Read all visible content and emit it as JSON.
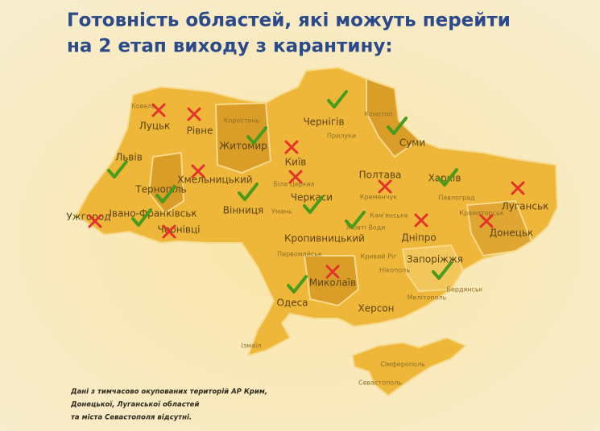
{
  "header": {
    "title": [
      "Готовність областей, які можуть перейти",
      "на 2 етап виходу з карантину:"
    ]
  },
  "regions": [
    {
      "label": "Луцьк",
      "ready": false
    },
    {
      "label": "Рівне",
      "ready": false
    },
    {
      "label": "Житомир",
      "ready": true
    },
    {
      "label": "Чернігів",
      "ready": true
    },
    {
      "label": "Суми",
      "ready": true
    },
    {
      "label": "Київ",
      "ready": false
    },
    {
      "label": null,
      "ready": false
    },
    {
      "label": "Львів",
      "ready": true
    },
    {
      "label": "Тернопіль",
      "ready": true
    },
    {
      "label": "Хмельницький",
      "ready": false
    },
    {
      "label": "Вінниця",
      "ready": true
    },
    {
      "label": "Полтава",
      "ready": false
    },
    {
      "label": "Харків",
      "ready": true
    },
    {
      "label": "Луганськ",
      "ready": false
    },
    {
      "label": "Ужгород",
      "ready": false
    },
    {
      "label": "Івано-Франківськ",
      "ready": true
    },
    {
      "label": "Чернівці",
      "ready": false
    },
    {
      "label": "Черкаси",
      "ready": true
    },
    {
      "label": "Кропивницький",
      "ready": true
    },
    {
      "label": "Дніпро",
      "ready": false
    },
    {
      "label": "Донецьк",
      "ready": false
    },
    {
      "label": "Запоріжжя",
      "ready": true
    },
    {
      "label": "Миколаїв",
      "ready": false
    },
    {
      "label": "Одеса",
      "ready": true
    },
    {
      "label": "Херсон",
      "ready": null
    }
  ],
  "cities": [
    "Ковель",
    "Коростень",
    "Прилуки",
    "Конотоп",
    "Біла Церква",
    "Умань",
    "Кременчук",
    "Павлоград",
    "Краматорськ",
    "Кам'янське",
    "Жовті Води",
    "Кривий Ріг",
    "Первомайськ",
    "Нікополь",
    "Бердянськ",
    "Мелітополь",
    "Ізмаїл",
    "Сімферополь",
    "Севастополь"
  ],
  "footnote": [
    "Дані з тимчасово окупованих територій АР Крим,",
    "Донецької, Луганської областей",
    "та міста Севастополя відсутні."
  ]
}
